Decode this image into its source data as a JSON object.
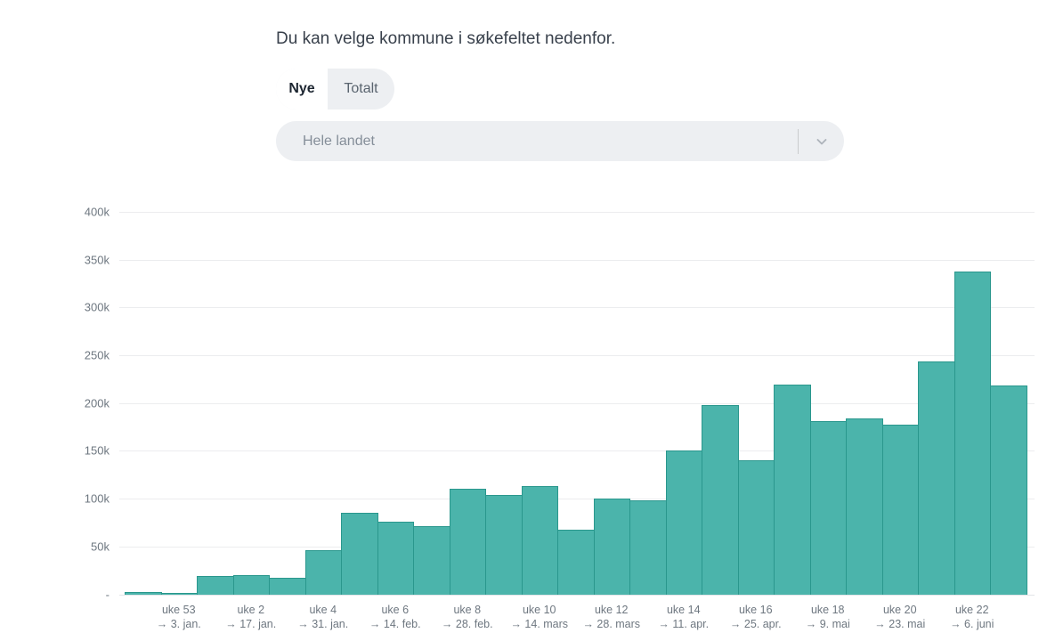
{
  "page": {
    "instruction": "Du kan velge kommune i søkefeltet nedenfor."
  },
  "toggle": {
    "options": [
      {
        "label": "Nye",
        "active": true
      },
      {
        "label": "Totalt",
        "active": false
      }
    ]
  },
  "region_select": {
    "value": "Hele landet",
    "chevron_icon": "chevron-down"
  },
  "colors": {
    "bar_fill": "#4bb4ab",
    "bar_border": "#2a978d",
    "control_background": "#edeff2",
    "grid_line": "#ecedef",
    "axis_text": "#6e7780",
    "heading_text": "#39414c"
  },
  "chart_data": {
    "type": "bar",
    "title": "",
    "xlabel": "",
    "ylabel": "",
    "grid": true,
    "legend": false,
    "ylim": [
      0,
      400000
    ],
    "x": [
      "uke 52",
      "uke 53",
      "uke 1",
      "uke 2",
      "uke 3",
      "uke 4",
      "uke 5",
      "uke 6",
      "uke 7",
      "uke 8",
      "uke 9",
      "uke 10",
      "uke 11",
      "uke 12",
      "uke 13",
      "uke 14",
      "uke 15",
      "uke 16",
      "uke 17",
      "uke 18",
      "uke 19",
      "uke 20",
      "uke 21",
      "uke 22",
      "uke 23"
    ],
    "values": [
      2500,
      1000,
      19000,
      20000,
      17000,
      46000,
      85000,
      76000,
      71000,
      110000,
      104000,
      113000,
      68000,
      100000,
      98000,
      150000,
      198000,
      140000,
      219000,
      181000,
      184000,
      177000,
      244000,
      338000,
      218000
    ],
    "y_ticks": [
      {
        "label": "400k",
        "value": 400000
      },
      {
        "label": "350k",
        "value": 350000
      },
      {
        "label": "300k",
        "value": 300000
      },
      {
        "label": "250k",
        "value": 250000
      },
      {
        "label": "200k",
        "value": 200000
      },
      {
        "label": "150k",
        "value": 150000
      },
      {
        "label": "100k",
        "value": 100000
      },
      {
        "label": "50k",
        "value": 50000
      },
      {
        "label": "-",
        "value": 0
      }
    ],
    "x_ticks": [
      {
        "week": "uke 53",
        "date": "→ 3. jan.",
        "bar_index": 1
      },
      {
        "week": "uke 2",
        "date": "→ 17. jan.",
        "bar_index": 3
      },
      {
        "week": "uke 4",
        "date": "→ 31. jan.",
        "bar_index": 5
      },
      {
        "week": "uke 6",
        "date": "→ 14. feb.",
        "bar_index": 7
      },
      {
        "week": "uke 8",
        "date": "→ 28. feb.",
        "bar_index": 9
      },
      {
        "week": "uke 10",
        "date": "→ 14. mars",
        "bar_index": 11
      },
      {
        "week": "uke 12",
        "date": "→ 28. mars",
        "bar_index": 13
      },
      {
        "week": "uke 14",
        "date": "→ 11. apr.",
        "bar_index": 15
      },
      {
        "week": "uke 16",
        "date": "→ 25. apr.",
        "bar_index": 17
      },
      {
        "week": "uke 18",
        "date": "→ 9. mai",
        "bar_index": 19
      },
      {
        "week": "uke 20",
        "date": "→ 23. mai",
        "bar_index": 21
      },
      {
        "week": "uke 22",
        "date": "→ 6. juni",
        "bar_index": 23
      }
    ]
  }
}
